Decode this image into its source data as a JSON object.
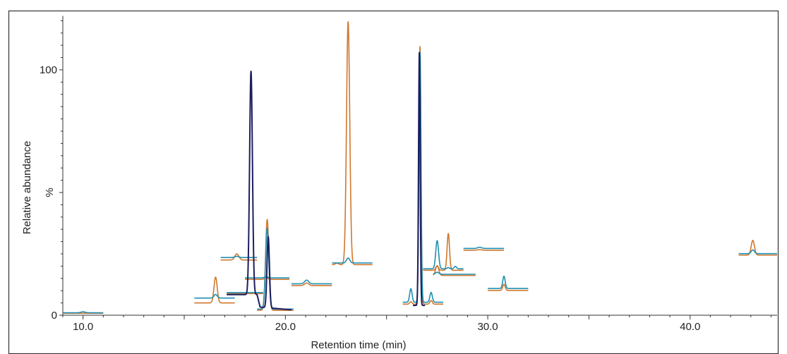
{
  "chart_data": {
    "type": "line",
    "title": "",
    "xlabel": "Retention time (min)",
    "ylabel": "Relative abundance",
    "y_unit_label": "%",
    "xlim": [
      9.0,
      44.3
    ],
    "ylim": [
      0,
      122
    ],
    "x_ticks": [
      10,
      20,
      30,
      40
    ],
    "x_tick_labels": [
      "10.0",
      "20.0",
      "30.0",
      "40.0"
    ],
    "y_ticks": [
      0,
      100
    ],
    "y_tick_labels": [
      "0",
      "100"
    ],
    "grid": false,
    "legend": "none",
    "colors": {
      "blue": "#1f8fb0",
      "orange": "#d0782e",
      "navy": "#1c1e5e",
      "frame": "#333333"
    },
    "segments": [
      {
        "start": 9.0,
        "end": 11.0,
        "blue": 1.0,
        "orange": 0.8,
        "peaks": [
          {
            "x": 10.0,
            "b": 0.4,
            "o": 0.0,
            "w": 0.1
          }
        ]
      },
      {
        "start": 15.5,
        "end": 17.5,
        "blue": 7.0,
        "orange": 5.0,
        "peaks": [
          {
            "x": 16.55,
            "b": 1.5,
            "o": 10.5,
            "w": 0.08
          }
        ]
      },
      {
        "start": 16.8,
        "end": 18.6,
        "blue": 23.5,
        "orange": 22.5,
        "peaks": [
          {
            "x": 17.6,
            "b": 0.5,
            "o": 2.5,
            "w": 0.1
          }
        ]
      },
      {
        "start": 17.1,
        "end": 18.9,
        "blue": 9.2,
        "orange": 8.8,
        "peaks": [
          {
            "x": 18.3,
            "b": 0.0,
            "o": 0.0,
            "w": 0.08
          }
        ]
      },
      {
        "start": 18.0,
        "end": 20.2,
        "blue": 15.2,
        "orange": 14.6,
        "peaks": [
          {
            "x": 19.05,
            "b": 0.5,
            "o": 0.8,
            "w": 0.08
          }
        ]
      },
      {
        "start": 18.6,
        "end": 20.4,
        "blue": 2.5,
        "orange": 2.0,
        "peaks": [
          {
            "x": 19.1,
            "b": 33.0,
            "o": 37.0,
            "w": 0.08
          }
        ]
      },
      {
        "start": 20.3,
        "end": 22.3,
        "blue": 12.8,
        "orange": 12.1,
        "peaks": [
          {
            "x": 21.05,
            "b": 1.5,
            "o": 1.0,
            "w": 0.1
          }
        ]
      },
      {
        "start": 22.3,
        "end": 24.3,
        "blue": 21.3,
        "orange": 20.6,
        "peaks": [
          {
            "x": 23.1,
            "b": 2.0,
            "o": 99.0,
            "w": 0.08
          },
          {
            "x": 22.55,
            "b": 0.0,
            "o": 0.6,
            "w": 0.08
          }
        ]
      },
      {
        "start": 25.8,
        "end": 27.8,
        "blue": 5.3,
        "orange": 4.5,
        "peaks": [
          {
            "x": 26.2,
            "b": 5.5,
            "o": 1.0,
            "w": 0.06
          },
          {
            "x": 26.65,
            "b": 102.0,
            "o": 105.0,
            "w": 0.05
          },
          {
            "x": 27.2,
            "b": 4.0,
            "o": 1.5,
            "w": 0.06
          }
        ]
      },
      {
        "start": 26.8,
        "end": 28.8,
        "blue": 18.9,
        "orange": 18.3,
        "peaks": [
          {
            "x": 27.5,
            "b": 11.5,
            "o": 1.8,
            "w": 0.07
          },
          {
            "x": 28.05,
            "b": 0.5,
            "o": 15.0,
            "w": 0.06
          },
          {
            "x": 28.4,
            "b": 1.0,
            "o": 0.0,
            "w": 0.06
          }
        ]
      },
      {
        "start": 27.3,
        "end": 29.4,
        "blue": 16.7,
        "orange": 16.2,
        "peaks": [
          {
            "x": 27.5,
            "b": 0.8,
            "o": 4.0,
            "w": 0.08
          }
        ]
      },
      {
        "start": 28.8,
        "end": 30.8,
        "blue": 27.2,
        "orange": 26.5,
        "peaks": [
          {
            "x": 29.6,
            "b": 0.5,
            "o": 0.2,
            "w": 0.1
          }
        ]
      },
      {
        "start": 30.0,
        "end": 32.0,
        "blue": 10.9,
        "orange": 10.1,
        "peaks": [
          {
            "x": 30.8,
            "b": 5.0,
            "o": 2.5,
            "w": 0.06
          }
        ]
      },
      {
        "start": 42.4,
        "end": 44.3,
        "blue": 25.1,
        "orange": 24.5,
        "peaks": [
          {
            "x": 43.1,
            "b": 1.5,
            "o": 6.0,
            "w": 0.08
          }
        ]
      }
    ],
    "navy_trace": {
      "baseline": [
        [
          17.1,
          8.4
        ],
        [
          18.6,
          8.4
        ],
        [
          18.75,
          3.3
        ],
        [
          20.3,
          2.2
        ]
      ],
      "peaks": [
        {
          "x": 18.3,
          "h": 91.0,
          "w": 0.07
        },
        {
          "x": 19.15,
          "h": 29.0,
          "w": 0.06
        }
      ]
    },
    "navy_trace_2": {
      "baseline": [
        [
          26.3,
          4.0
        ],
        [
          26.9,
          4.0
        ]
      ],
      "peaks": [
        {
          "x": 26.62,
          "h": 103.0,
          "w": 0.04
        }
      ]
    }
  }
}
